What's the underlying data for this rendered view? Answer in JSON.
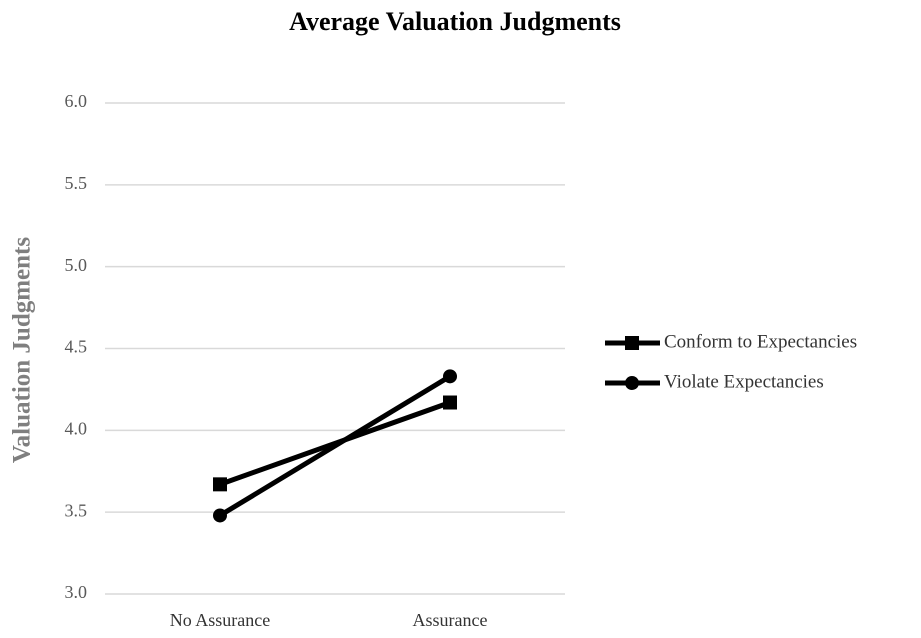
{
  "chart_data": {
    "type": "line",
    "title": "Average Valuation Judgments",
    "y_label": "Valuation Judgments",
    "categories": [
      "No Assurance",
      "Assurance"
    ],
    "series": [
      {
        "name": "Conform to Expectancies",
        "color": "#000000",
        "marker": "square",
        "values": [
          3.67,
          4.17
        ]
      },
      {
        "name": "Violate Expectancies",
        "color": "#000000",
        "marker": "circle",
        "values": [
          3.48,
          4.33
        ]
      }
    ],
    "ylim": [
      3.0,
      6.0
    ],
    "yticks": [
      {
        "value": 3,
        "label": "3.0"
      },
      3.5,
      {
        "value": 4,
        "label": "4.0"
      },
      4.5,
      {
        "value": 5,
        "label": "5.0"
      },
      5.5,
      {
        "value": 6,
        "label": "6.0"
      }
    ],
    "grid": true,
    "legend": "right"
  }
}
